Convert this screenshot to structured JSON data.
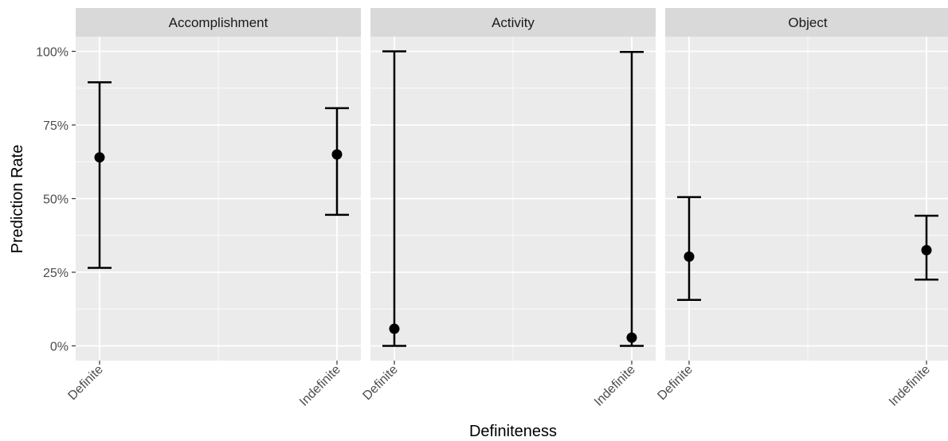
{
  "chart_data": {
    "type": "scatter",
    "subtype": "point-with-errorbars",
    "facet_by": "panel",
    "xlabel": "Definiteness",
    "ylabel": "Prediction Rate",
    "categories": [
      "Definite",
      "Indefinite"
    ],
    "ylim": [
      -0.05,
      1.05
    ],
    "y_ticks": [
      0,
      0.25,
      0.5,
      0.75,
      1.0
    ],
    "y_tick_labels": [
      "0%",
      "25%",
      "50%",
      "75%",
      "100%"
    ],
    "grid": true,
    "colors": {
      "panel_background": "#ebebeb",
      "strip_background": "#d9d9d9",
      "grid": "#ffffff",
      "marks": "#000000"
    },
    "panels": [
      {
        "name": "Accomplishment",
        "points": [
          {
            "category": "Definite",
            "y": 0.64,
            "ymin": 0.265,
            "ymax": 0.895
          },
          {
            "category": "Indefinite",
            "y": 0.65,
            "ymin": 0.445,
            "ymax": 0.807
          }
        ]
      },
      {
        "name": "Activity",
        "points": [
          {
            "category": "Definite",
            "y": 0.058,
            "ymin": 0.0,
            "ymax": 1.0
          },
          {
            "category": "Indefinite",
            "y": 0.028,
            "ymin": 0.0,
            "ymax": 0.998
          }
        ]
      },
      {
        "name": "Object",
        "points": [
          {
            "category": "Definite",
            "y": 0.303,
            "ymin": 0.156,
            "ymax": 0.505
          },
          {
            "category": "Indefinite",
            "y": 0.325,
            "ymin": 0.225,
            "ymax": 0.442
          }
        ]
      }
    ]
  }
}
